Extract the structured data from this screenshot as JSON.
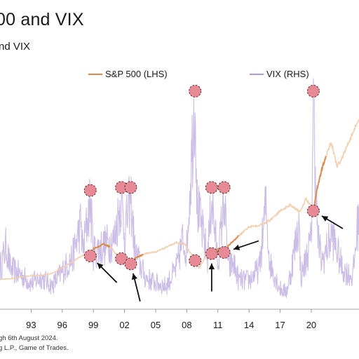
{
  "title": "00 and VIX",
  "subtitle": "nd VIX",
  "footnotes": [
    "gh 6th August 2024.",
    "g L.P., Game of Trades."
  ],
  "colors": {
    "sp500": "#d98a4a",
    "sp500_faded": "#f1cfae",
    "vix": "#cbbde6",
    "marker_fill": "#e88a96",
    "marker_stroke": "#5a2a2a"
  },
  "chart_data": {
    "type": "line",
    "x_tick_labels": [
      "93",
      "96",
      "99",
      "02",
      "05",
      "08",
      "11",
      "14",
      "17",
      "20"
    ],
    "xlim": [
      1990,
      2024.6
    ],
    "series": [
      {
        "name": "S&P 500 (LHS)",
        "axis": "left",
        "x": [
          1990,
          1991,
          1992,
          1993,
          1994,
          1995,
          1996,
          1997,
          1998,
          1998.6,
          1999,
          2000,
          2000.7,
          2001,
          2002,
          2002.8,
          2003,
          2004,
          2005,
          2006,
          2007,
          2007.8,
          2008.5,
          2009.2,
          2010,
          2010.8,
          2011,
          2011.8,
          2012,
          2013,
          2014,
          2015,
          2016,
          2017,
          2018,
          2018.9,
          2019.5,
          2020.2,
          2020.5,
          2021,
          2021.9,
          2022.5,
          2023,
          2024,
          2024.6
        ],
        "values": [
          340,
          350,
          410,
          450,
          460,
          520,
          700,
          900,
          1100,
          1000,
          1300,
          1450,
          1350,
          1200,
          900,
          800,
          1000,
          1150,
          1200,
          1350,
          1500,
          1450,
          1100,
          700,
          1150,
          1150,
          1300,
          1150,
          1400,
          1700,
          2000,
          2050,
          2200,
          2500,
          2700,
          2450,
          2900,
          2500,
          3100,
          3800,
          4700,
          3900,
          4200,
          5000,
          5400
        ]
      },
      {
        "name": "VIX (RHS)",
        "axis": "right",
        "x": [
          1990,
          1990.6,
          1991,
          1992,
          1993,
          1994,
          1995,
          1996,
          1997,
          1997.8,
          1998,
          1998.7,
          1999,
          2000,
          2001,
          2001.7,
          2002,
          2002.6,
          2003,
          2004,
          2005,
          2006,
          2007,
          2007.6,
          2008,
          2008.8,
          2009,
          2010,
          2010.4,
          2011,
          2011.6,
          2012,
          2012.5,
          2013,
          2014,
          2015,
          2015.6,
          2016,
          2017,
          2017.6,
          2018,
          2018.8,
          2019,
          2020,
          2020.2,
          2020.6,
          2021,
          2022,
          2023,
          2024,
          2024.6
        ],
        "values": [
          18,
          26,
          18,
          16,
          13,
          15,
          12,
          17,
          22,
          34,
          24,
          42,
          24,
          26,
          28,
          43,
          30,
          43,
          24,
          15,
          13,
          12,
          18,
          28,
          25,
          80,
          40,
          22,
          43,
          20,
          43,
          18,
          20,
          14,
          14,
          18,
          40,
          20,
          11,
          10,
          16,
          34,
          15,
          28,
          78,
          30,
          20,
          30,
          18,
          15,
          38
        ]
      }
    ],
    "markers": [
      1998.7,
      2001.7,
      2002.6,
      2008.8,
      2010.4,
      2011.6,
      2020.2
    ]
  }
}
